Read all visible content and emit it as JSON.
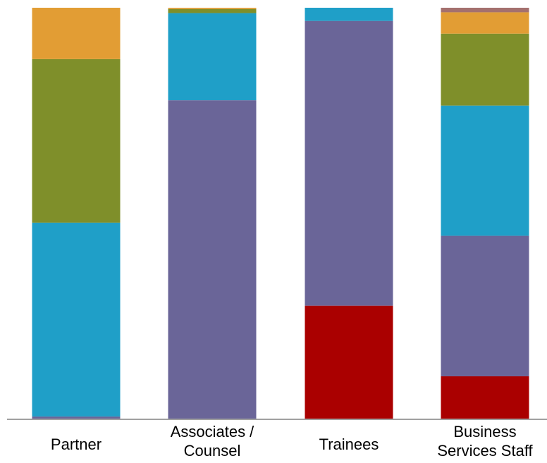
{
  "chart_data": {
    "type": "bar",
    "stacked": true,
    "normalized": true,
    "title": "",
    "xlabel": "",
    "ylabel": "",
    "ylim": [
      0,
      100
    ],
    "grid": false,
    "legend": "none",
    "categories": [
      [
        "Partner"
      ],
      [
        "Associates /",
        "Counsel"
      ],
      [
        "Trainees"
      ],
      [
        "Business",
        "Services Staff"
      ]
    ],
    "series": [
      {
        "color": "#AA0000",
        "values": [
          0,
          0,
          27.5,
          10.3
        ]
      },
      {
        "color": "#6A6598",
        "values": [
          0.5,
          77.5,
          69.3,
          34.2
        ]
      },
      {
        "color": "#1F9FC8",
        "values": [
          47.2,
          21.2,
          3.2,
          31.7
        ]
      },
      {
        "color": "#7F8F2A",
        "values": [
          39.8,
          1.0,
          0,
          17.5
        ]
      },
      {
        "color": "#E29D34",
        "values": [
          12.5,
          0.3,
          0,
          5.2
        ]
      },
      {
        "color": "#A4706E",
        "values": [
          0,
          0,
          0,
          1.1
        ]
      }
    ]
  }
}
